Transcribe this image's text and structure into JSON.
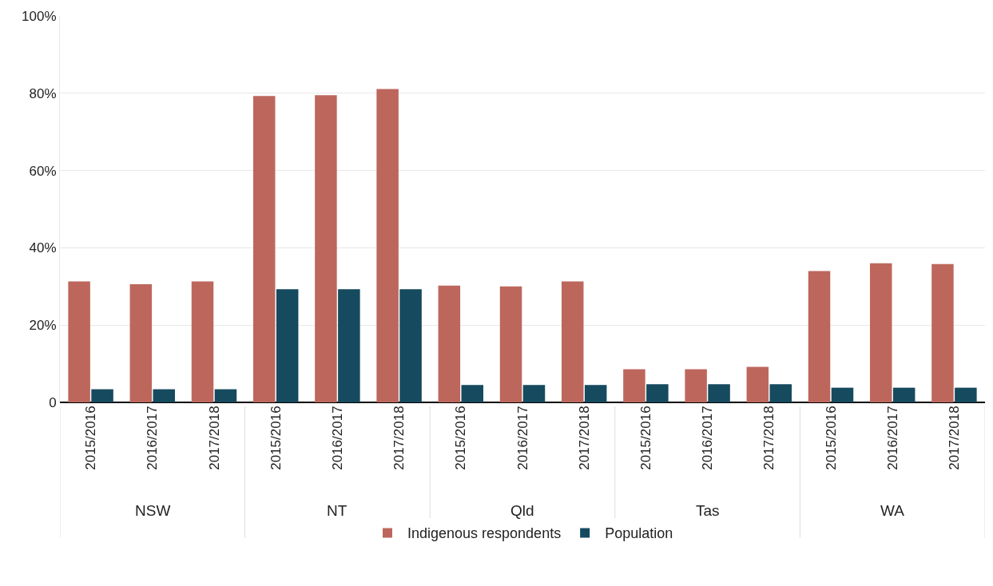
{
  "chart_data": {
    "type": "bar",
    "categories": [
      "2015/2016",
      "2016/2017",
      "2017/2018",
      "2015/2016",
      "2016/2017",
      "2017/2018",
      "2015/2016",
      "2016/2017",
      "2017/2018",
      "2015/2016",
      "2016/2017",
      "2017/2018",
      "2015/2016",
      "2016/2017",
      "2017/2018"
    ],
    "annotations": [
      "NSW",
      "NT",
      "Qld",
      "Tas",
      "WA"
    ],
    "series": [
      {
        "name": "Indigenous respondents",
        "color": "#bd675c",
        "values": [
          31.3,
          30.6,
          31.3,
          79.3,
          79.5,
          81.1,
          30.2,
          30.0,
          31.3,
          8.6,
          8.6,
          9.2,
          34.0,
          36.0,
          35.8
        ]
      },
      {
        "name": "Population",
        "color": "#164a5e",
        "values": [
          3.4,
          3.4,
          3.4,
          29.3,
          29.3,
          29.3,
          4.5,
          4.5,
          4.5,
          4.7,
          4.7,
          4.7,
          3.8,
          3.8,
          3.8
        ]
      }
    ],
    "ylim": [
      0,
      100
    ],
    "yticks": [
      {
        "value": 0,
        "label": "0"
      },
      {
        "value": 20,
        "label": "20%"
      },
      {
        "value": 40,
        "label": "40%"
      },
      {
        "value": 60,
        "label": "60%"
      },
      {
        "value": 80,
        "label": "80%"
      },
      {
        "value": 100,
        "label": "100%"
      }
    ],
    "grid": "y",
    "legend": "bottom"
  }
}
